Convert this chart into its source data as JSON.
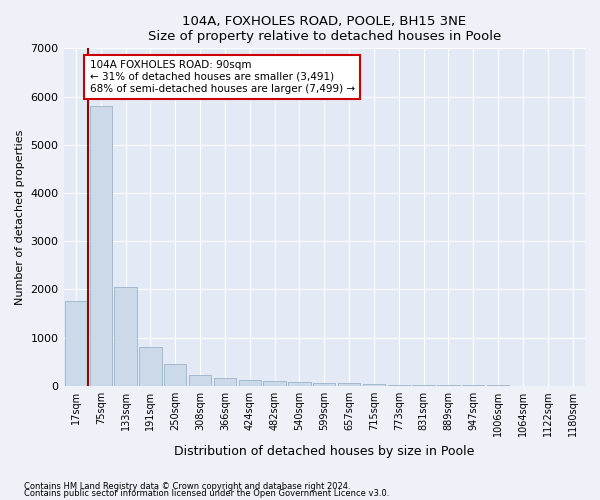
{
  "title1": "104A, FOXHOLES ROAD, POOLE, BH15 3NE",
  "title2": "Size of property relative to detached houses in Poole",
  "xlabel": "Distribution of detached houses by size in Poole",
  "ylabel": "Number of detached properties",
  "categories": [
    "17sqm",
    "75sqm",
    "133sqm",
    "191sqm",
    "250sqm",
    "308sqm",
    "366sqm",
    "424sqm",
    "482sqm",
    "540sqm",
    "599sqm",
    "657sqm",
    "715sqm",
    "773sqm",
    "831sqm",
    "889sqm",
    "947sqm",
    "1006sqm",
    "1064sqm",
    "1122sqm",
    "1180sqm"
  ],
  "values": [
    1750,
    5800,
    2050,
    800,
    450,
    220,
    170,
    120,
    100,
    75,
    60,
    55,
    30,
    20,
    15,
    12,
    10,
    8,
    6,
    5,
    4
  ],
  "bar_color": "#ccd9e8",
  "bar_edge_color": "#99b3cc",
  "vline_x": 0.5,
  "vline_color": "#990000",
  "annotation_text": "104A FOXHOLES ROAD: 90sqm\n← 31% of detached houses are smaller (3,491)\n68% of semi-detached houses are larger (7,499) →",
  "annotation_box_color": "white",
  "annotation_box_edge": "#cc0000",
  "ylim": [
    0,
    7000
  ],
  "yticks": [
    0,
    1000,
    2000,
    3000,
    4000,
    5000,
    6000,
    7000
  ],
  "footer1": "Contains HM Land Registry data © Crown copyright and database right 2024.",
  "footer2": "Contains public sector information licensed under the Open Government Licence v3.0.",
  "bg_color": "#eef1f8",
  "plot_bg_color": "#e4eaf5"
}
